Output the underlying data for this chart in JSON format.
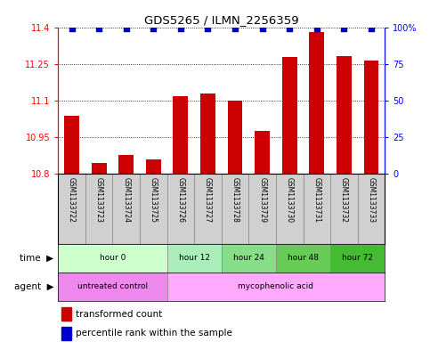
{
  "title": "GDS5265 / ILMN_2256359",
  "samples": [
    "GSM1133722",
    "GSM1133723",
    "GSM1133724",
    "GSM1133725",
    "GSM1133726",
    "GSM1133727",
    "GSM1133728",
    "GSM1133729",
    "GSM1133730",
    "GSM1133731",
    "GSM1133732",
    "GSM1133733"
  ],
  "transformed_count": [
    11.04,
    10.845,
    10.875,
    10.86,
    11.12,
    11.13,
    11.1,
    10.975,
    11.28,
    11.385,
    11.285,
    11.265
  ],
  "bar_color": "#cc0000",
  "dot_color": "#0000cc",
  "ylim_left": [
    10.8,
    11.4
  ],
  "ylim_right": [
    0,
    100
  ],
  "yticks_left": [
    10.8,
    10.95,
    11.1,
    11.25,
    11.4
  ],
  "yticks_right": [
    0,
    25,
    50,
    75,
    100
  ],
  "ytick_labels_left": [
    "10.8",
    "10.95",
    "11.1",
    "11.25",
    "11.4"
  ],
  "ytick_labels_right": [
    "0",
    "25",
    "50",
    "75",
    "100%"
  ],
  "time_groups": [
    {
      "label": "hour 0",
      "start": 0,
      "end": 4,
      "color": "#ccffcc"
    },
    {
      "label": "hour 12",
      "start": 4,
      "end": 6,
      "color": "#aaeebb"
    },
    {
      "label": "hour 24",
      "start": 6,
      "end": 8,
      "color": "#88dd88"
    },
    {
      "label": "hour 48",
      "start": 8,
      "end": 10,
      "color": "#66cc55"
    },
    {
      "label": "hour 72",
      "start": 10,
      "end": 12,
      "color": "#44bb33"
    }
  ],
  "agent_groups": [
    {
      "label": "untreated control",
      "start": 0,
      "end": 4,
      "color": "#ee88ee"
    },
    {
      "label": "mycophenolic acid",
      "start": 4,
      "end": 12,
      "color": "#ffaaff"
    }
  ],
  "legend_bar_label": "transformed count",
  "legend_dot_label": "percentile rank within the sample",
  "sample_box_color": "#d0d0d0",
  "dot_percentile": 99.5
}
